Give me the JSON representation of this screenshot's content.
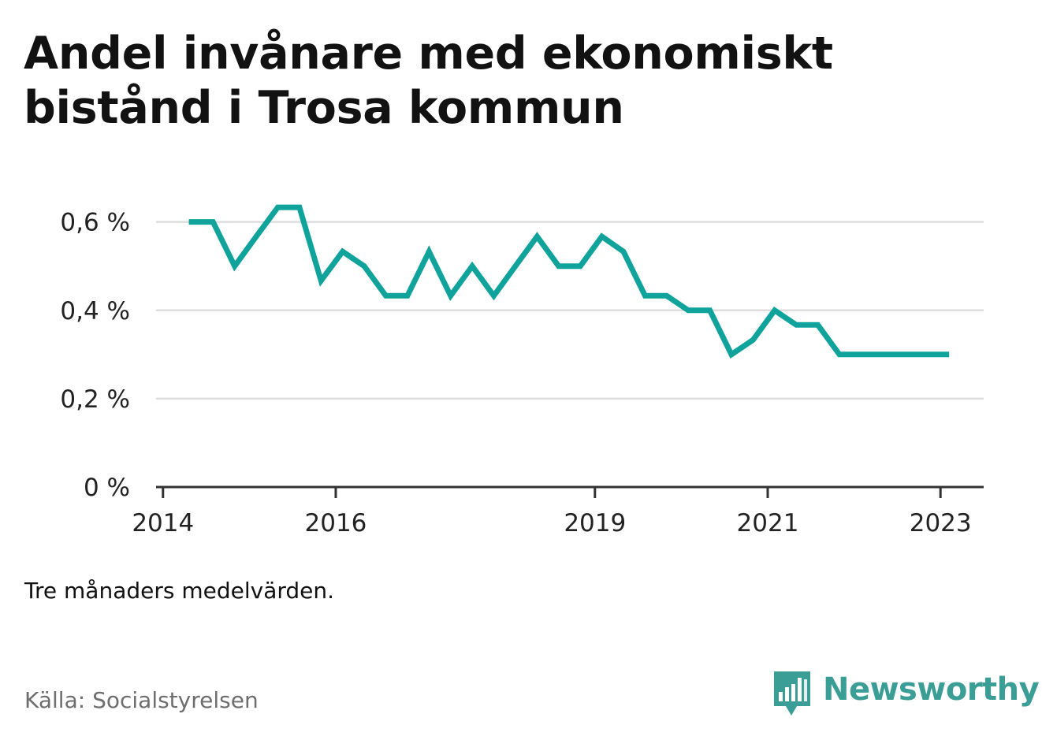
{
  "title": "Andel invånare med ekonomiskt bistånd i Trosa kommun",
  "note": "Tre månaders medelvärden.",
  "source": "Källa: Socialstyrelsen",
  "brand": "Newsworthy",
  "colors": {
    "line": "#0fa39b",
    "grid": "#dddddd",
    "axis": "#333333",
    "brand": "#3a9e96"
  },
  "chart_data": {
    "type": "line",
    "title": "Andel invånare med ekonomiskt bistånd i Trosa kommun",
    "xlabel": "",
    "ylabel": "",
    "y_ticks": [
      0,
      0.2,
      0.4,
      0.6
    ],
    "y_tick_labels": [
      "0 %",
      "0,2 %",
      "0,4 %",
      "0,6 %"
    ],
    "x_ticks": [
      2014,
      2016,
      2019,
      2021,
      2023
    ],
    "x_tick_labels": [
      "2014",
      "2016",
      "2019",
      "2021",
      "2023"
    ],
    "xlim": [
      2013.92,
      2023.5
    ],
    "ylim": [
      0,
      0.66
    ],
    "grid": true,
    "series": [
      {
        "x": [
          2014.3,
          2014.58,
          2014.83,
          2015.08,
          2015.33,
          2015.58,
          2015.83,
          2016.08,
          2016.33,
          2016.58,
          2016.83,
          2017.08,
          2017.33,
          2017.58,
          2017.83,
          2018.08,
          2018.33,
          2018.58,
          2018.83,
          2019.08,
          2019.33,
          2019.58,
          2019.83,
          2020.08,
          2020.33,
          2020.58,
          2020.83,
          2021.08,
          2021.33,
          2021.58,
          2021.83,
          2022.08,
          2022.33,
          2022.58,
          2022.83,
          2023.1
        ],
        "y": [
          0.6,
          0.6,
          0.5,
          0.567,
          0.633,
          0.633,
          0.467,
          0.533,
          0.5,
          0.433,
          0.433,
          0.533,
          0.433,
          0.5,
          0.433,
          0.5,
          0.567,
          0.5,
          0.5,
          0.567,
          0.533,
          0.433,
          0.433,
          0.4,
          0.4,
          0.3,
          0.333,
          0.4,
          0.367,
          0.367,
          0.3,
          0.3,
          0.3,
          0.3,
          0.3,
          0.3
        ]
      }
    ]
  }
}
